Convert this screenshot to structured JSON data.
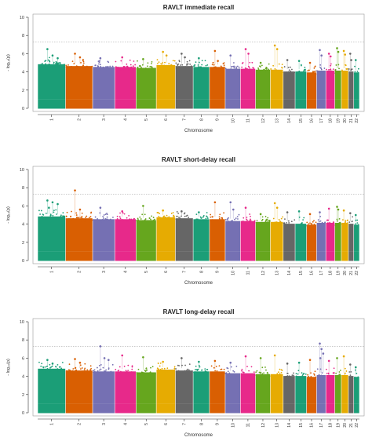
{
  "colors": {
    "palette": [
      "#1b9e77",
      "#d95f02",
      "#7570b3",
      "#e7298a",
      "#66a61e",
      "#e6ab02",
      "#666666"
    ],
    "axis": "#333333",
    "threshold_line": "#aaaaaa"
  },
  "chart_data": [
    {
      "type": "scatter",
      "subtype": "manhattan",
      "title": "RAVLT immediate recall",
      "xlabel": "Chromosome",
      "ylabel": "- log₁₀(p)",
      "ylim": [
        0,
        10
      ],
      "yticks": [
        0,
        2,
        4,
        6,
        8,
        10
      ],
      "threshold": 7.3,
      "chromosomes": [
        "1",
        "2",
        "3",
        "4",
        "5",
        "6",
        "7",
        "8",
        "9",
        "10",
        "11",
        "12",
        "13",
        "14",
        "15",
        "16",
        "17",
        "18",
        "19",
        "20",
        "21",
        "22"
      ],
      "baseline_max": [
        5.1,
        4.9,
        4.8,
        4.8,
        4.7,
        5.0,
        4.9,
        4.8,
        4.8,
        4.6,
        4.6,
        4.5,
        4.5,
        4.3,
        4.3,
        4.2,
        4.4,
        4.4,
        4.4,
        4.4,
        4.3,
        4.2
      ],
      "top_hits": [
        {
          "chr": "1",
          "values": [
            6.5,
            5.8,
            5.5
          ]
        },
        {
          "chr": "2",
          "values": [
            6.0,
            5.6
          ]
        },
        {
          "chr": "3",
          "values": [
            5.5
          ]
        },
        {
          "chr": "4",
          "values": [
            5.6
          ]
        },
        {
          "chr": "5",
          "values": [
            5.4
          ]
        },
        {
          "chr": "6",
          "values": [
            6.2,
            5.8
          ]
        },
        {
          "chr": "7",
          "values": [
            6.0,
            5.6
          ]
        },
        {
          "chr": "8",
          "values": [
            5.5
          ]
        },
        {
          "chr": "9",
          "values": [
            6.3,
            5.2
          ]
        },
        {
          "chr": "10",
          "values": [
            5.8
          ]
        },
        {
          "chr": "11",
          "values": [
            6.5,
            6.0
          ]
        },
        {
          "chr": "12",
          "values": [
            5.0
          ]
        },
        {
          "chr": "13",
          "values": [
            6.9,
            6.5
          ]
        },
        {
          "chr": "14",
          "values": [
            5.3
          ]
        },
        {
          "chr": "15",
          "values": [
            5.2
          ]
        },
        {
          "chr": "16",
          "values": [
            5.0
          ]
        },
        {
          "chr": "17",
          "values": [
            6.4,
            5.8
          ]
        },
        {
          "chr": "18",
          "values": [
            6.0,
            5.7
          ]
        },
        {
          "chr": "19",
          "values": [
            6.6,
            6.2
          ]
        },
        {
          "chr": "20",
          "values": [
            6.3,
            5.9
          ]
        },
        {
          "chr": "21",
          "values": [
            6.0,
            5.3
          ]
        },
        {
          "chr": "22",
          "values": [
            5.3
          ]
        }
      ]
    },
    {
      "type": "scatter",
      "subtype": "manhattan",
      "title": "RAVLT short-delay recall",
      "xlabel": "Chromosome",
      "ylabel": "- log₁₀(p)",
      "ylim": [
        0,
        10
      ],
      "yticks": [
        0,
        2,
        4,
        6,
        8,
        10
      ],
      "threshold": 7.3,
      "chromosomes": [
        "1",
        "2",
        "3",
        "4",
        "5",
        "6",
        "7",
        "8",
        "9",
        "10",
        "11",
        "12",
        "13",
        "14",
        "15",
        "16",
        "17",
        "18",
        "19",
        "20",
        "21",
        "22"
      ],
      "baseline_max": [
        5.1,
        4.9,
        4.8,
        4.8,
        4.7,
        5.0,
        4.9,
        4.8,
        4.8,
        4.6,
        4.6,
        4.5,
        4.5,
        4.3,
        4.3,
        4.2,
        4.4,
        4.4,
        4.4,
        4.4,
        4.3,
        4.2
      ],
      "top_hits": [
        {
          "chr": "1",
          "values": [
            6.6,
            6.4,
            6.2,
            5.8
          ]
        },
        {
          "chr": "2",
          "values": [
            7.7,
            5.6
          ]
        },
        {
          "chr": "3",
          "values": [
            5.8
          ]
        },
        {
          "chr": "4",
          "values": [
            5.4
          ]
        },
        {
          "chr": "5",
          "values": [
            6.0
          ]
        },
        {
          "chr": "6",
          "values": [
            5.5
          ]
        },
        {
          "chr": "7",
          "values": [
            5.4
          ]
        },
        {
          "chr": "8",
          "values": [
            5.3
          ]
        },
        {
          "chr": "9",
          "values": [
            6.4
          ]
        },
        {
          "chr": "10",
          "values": [
            6.4,
            5.6
          ]
        },
        {
          "chr": "11",
          "values": [
            5.8
          ]
        },
        {
          "chr": "12",
          "values": [
            5.1
          ]
        },
        {
          "chr": "13",
          "values": [
            6.3,
            5.8
          ]
        },
        {
          "chr": "14",
          "values": [
            5.3
          ]
        },
        {
          "chr": "15",
          "values": [
            5.4
          ]
        },
        {
          "chr": "16",
          "values": [
            5.1
          ]
        },
        {
          "chr": "17",
          "values": [
            5.3
          ]
        },
        {
          "chr": "18",
          "values": [
            5.7
          ]
        },
        {
          "chr": "19",
          "values": [
            5.9,
            5.6
          ]
        },
        {
          "chr": "20",
          "values": [
            5.5
          ]
        },
        {
          "chr": "21",
          "values": [
            5.2
          ]
        },
        {
          "chr": "22",
          "values": [
            5.0
          ]
        }
      ]
    },
    {
      "type": "scatter",
      "subtype": "manhattan",
      "title": "RAVLT long-delay recall",
      "xlabel": "Chromosome",
      "ylabel": "- log₁₀(p)",
      "ylim": [
        0,
        10
      ],
      "yticks": [
        0,
        2,
        4,
        6,
        8,
        10
      ],
      "threshold": 7.3,
      "chromosomes": [
        "1",
        "2",
        "3",
        "4",
        "5",
        "6",
        "7",
        "8",
        "9",
        "10",
        "11",
        "12",
        "13",
        "14",
        "15",
        "16",
        "17",
        "18",
        "19",
        "20",
        "21",
        "22"
      ],
      "baseline_max": [
        5.1,
        4.9,
        4.8,
        4.8,
        4.7,
        5.0,
        4.9,
        4.8,
        4.8,
        4.6,
        4.6,
        4.5,
        4.5,
        4.3,
        4.3,
        4.2,
        4.4,
        4.4,
        4.4,
        4.4,
        4.3,
        4.2
      ],
      "top_hits": [
        {
          "chr": "1",
          "values": [
            5.8,
            5.4
          ]
        },
        {
          "chr": "2",
          "values": [
            5.9,
            5.5
          ]
        },
        {
          "chr": "3",
          "values": [
            7.3,
            6.0,
            5.8
          ]
        },
        {
          "chr": "4",
          "values": [
            6.3
          ]
        },
        {
          "chr": "5",
          "values": [
            6.1
          ]
        },
        {
          "chr": "6",
          "values": [
            5.6
          ]
        },
        {
          "chr": "7",
          "values": [
            6.0
          ]
        },
        {
          "chr": "8",
          "values": [
            5.6
          ]
        },
        {
          "chr": "9",
          "values": [
            5.7
          ]
        },
        {
          "chr": "10",
          "values": [
            5.5
          ]
        },
        {
          "chr": "11",
          "values": [
            6.2
          ]
        },
        {
          "chr": "12",
          "values": [
            6.0
          ]
        },
        {
          "chr": "13",
          "values": [
            6.3
          ]
        },
        {
          "chr": "14",
          "values": [
            5.4
          ]
        },
        {
          "chr": "15",
          "values": [
            5.5
          ]
        },
        {
          "chr": "16",
          "values": [
            5.8
          ]
        },
        {
          "chr": "17",
          "values": [
            7.6,
            7.0,
            6.5,
            6.0
          ]
        },
        {
          "chr": "18",
          "values": [
            5.7
          ]
        },
        {
          "chr": "19",
          "values": [
            6.0
          ]
        },
        {
          "chr": "20",
          "values": [
            6.2
          ]
        },
        {
          "chr": "21",
          "values": [
            5.3
          ]
        },
        {
          "chr": "22",
          "values": [
            5.0
          ]
        }
      ]
    }
  ]
}
